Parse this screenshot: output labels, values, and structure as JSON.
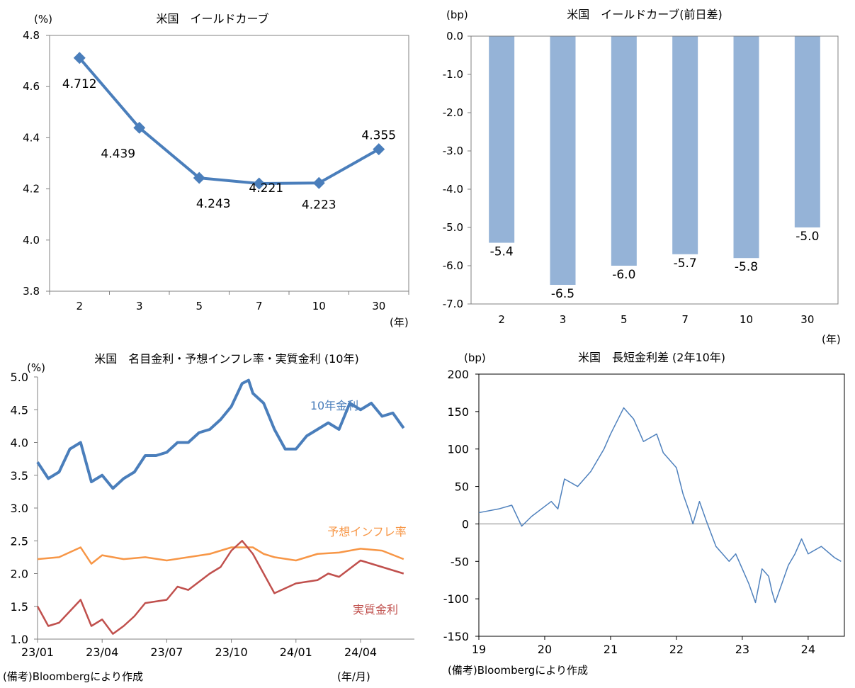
{
  "footnotes": {
    "left": "(備考)Bloombergにより作成",
    "right": "(備考)Bloombergにより作成",
    "left_xunit": "(年/月)"
  },
  "colors": {
    "line_blue": "#4a7ebb",
    "bar_blue": "#95b3d7",
    "orange": "#f79646",
    "red": "#c0504d",
    "spread_blue": "#4f81bd"
  },
  "chart_data": [
    {
      "id": "yield_curve",
      "type": "line",
      "title": "米国　イールドカーブ",
      "yunit": "(%)",
      "xunit": "(年)",
      "categories": [
        "2",
        "3",
        "5",
        "7",
        "10",
        "30"
      ],
      "values": [
        4.712,
        4.439,
        4.243,
        4.221,
        4.223,
        4.355
      ],
      "data_labels": [
        "4.712",
        "4.439",
        "4.243",
        "4.221",
        "4.223",
        "4.355"
      ],
      "ylim": [
        3.8,
        4.8
      ],
      "yticks": [
        "3.8",
        "4.0",
        "4.2",
        "4.4",
        "4.6",
        "4.8"
      ]
    },
    {
      "id": "yield_change",
      "type": "bar",
      "title": "米国　イールドカーブ(前日差)",
      "yunit": "(bp)",
      "xunit": "(年)",
      "categories": [
        "2",
        "3",
        "5",
        "7",
        "10",
        "30"
      ],
      "values": [
        -5.4,
        -6.5,
        -6.0,
        -5.7,
        -5.8,
        -5.0
      ],
      "data_labels": [
        "-5.4",
        "-6.5",
        "-6.0",
        "-5.7",
        "-5.8",
        "-5.0"
      ],
      "ylim": [
        -7.0,
        0.0
      ],
      "yticks": [
        "0.0",
        "-1.0",
        "-2.0",
        "-3.0",
        "-4.0",
        "-5.0",
        "-6.0",
        "-7.0"
      ]
    },
    {
      "id": "rates_10y",
      "type": "line",
      "title": "米国　名目金利・予想インフレ率・実質金利 (10年)",
      "yunit": "(%)",
      "ylim": [
        1.0,
        5.0
      ],
      "yticks": [
        "1.0",
        "1.5",
        "2.0",
        "2.5",
        "3.0",
        "3.5",
        "4.0",
        "4.5",
        "5.0"
      ],
      "xticks": [
        "23/01",
        "23/04",
        "23/07",
        "23/10",
        "24/01",
        "24/04"
      ],
      "series": [
        {
          "name": "10年金利",
          "points": [
            [
              0,
              3.7
            ],
            [
              0.5,
              3.45
            ],
            [
              1,
              3.55
            ],
            [
              1.5,
              3.9
            ],
            [
              2,
              4.0
            ],
            [
              2.5,
              3.4
            ],
            [
              3,
              3.5
            ],
            [
              3.5,
              3.3
            ],
            [
              4,
              3.45
            ],
            [
              4.5,
              3.55
            ],
            [
              5,
              3.8
            ],
            [
              5.5,
              3.8
            ],
            [
              6,
              3.85
            ],
            [
              6.5,
              4.0
            ],
            [
              7,
              4.0
            ],
            [
              7.5,
              4.15
            ],
            [
              8,
              4.2
            ],
            [
              8.5,
              4.35
            ],
            [
              9,
              4.55
            ],
            [
              9.5,
              4.9
            ],
            [
              9.8,
              4.95
            ],
            [
              10,
              4.75
            ],
            [
              10.5,
              4.6
            ],
            [
              11,
              4.2
            ],
            [
              11.5,
              3.9
            ],
            [
              12,
              3.9
            ],
            [
              12.5,
              4.1
            ],
            [
              13,
              4.2
            ],
            [
              13.5,
              4.3
            ],
            [
              14,
              4.2
            ],
            [
              14.5,
              4.6
            ],
            [
              15,
              4.5
            ],
            [
              15.5,
              4.6
            ],
            [
              16,
              4.4
            ],
            [
              16.5,
              4.45
            ],
            [
              17,
              4.22
            ]
          ]
        },
        {
          "name": "予想インフレ率",
          "points": [
            [
              0,
              2.22
            ],
            [
              1,
              2.25
            ],
            [
              2,
              2.4
            ],
            [
              2.5,
              2.15
            ],
            [
              3,
              2.28
            ],
            [
              4,
              2.22
            ],
            [
              5,
              2.25
            ],
            [
              6,
              2.2
            ],
            [
              7,
              2.25
            ],
            [
              8,
              2.3
            ],
            [
              9,
              2.4
            ],
            [
              10,
              2.4
            ],
            [
              10.5,
              2.3
            ],
            [
              11,
              2.25
            ],
            [
              12,
              2.2
            ],
            [
              13,
              2.3
            ],
            [
              14,
              2.32
            ],
            [
              15,
              2.38
            ],
            [
              16,
              2.35
            ],
            [
              17,
              2.22
            ]
          ]
        },
        {
          "name": "実質金利",
          "points": [
            [
              0,
              1.5
            ],
            [
              0.5,
              1.2
            ],
            [
              1,
              1.25
            ],
            [
              2,
              1.6
            ],
            [
              2.5,
              1.2
            ],
            [
              3,
              1.3
            ],
            [
              3.5,
              1.08
            ],
            [
              4,
              1.2
            ],
            [
              4.5,
              1.35
            ],
            [
              5,
              1.55
            ],
            [
              6,
              1.6
            ],
            [
              6.5,
              1.8
            ],
            [
              7,
              1.75
            ],
            [
              8,
              2.0
            ],
            [
              8.5,
              2.1
            ],
            [
              9,
              2.35
            ],
            [
              9.5,
              2.5
            ],
            [
              10,
              2.3
            ],
            [
              10.5,
              2.0
            ],
            [
              11,
              1.7
            ],
            [
              12,
              1.85
            ],
            [
              13,
              1.9
            ],
            [
              13.5,
              2.0
            ],
            [
              14,
              1.95
            ],
            [
              15,
              2.2
            ],
            [
              16,
              2.1
            ],
            [
              17,
              2.0
            ]
          ]
        }
      ]
    },
    {
      "id": "spread_2_10",
      "type": "line",
      "title": "米国　長短金利差 (2年10年)",
      "yunit": "(bp)",
      "ylim": [
        -150,
        200
      ],
      "yticks": [
        "200",
        "150",
        "100",
        "50",
        "0",
        "-50",
        "-100",
        "-150"
      ],
      "xticks": [
        "19",
        "20",
        "21",
        "22",
        "23",
        "24"
      ],
      "series": [
        {
          "name": "長短金利差",
          "points": [
            [
              19.0,
              15
            ],
            [
              19.3,
              20
            ],
            [
              19.5,
              25
            ],
            [
              19.65,
              -3
            ],
            [
              19.8,
              10
            ],
            [
              20.1,
              30
            ],
            [
              20.2,
              20
            ],
            [
              20.3,
              60
            ],
            [
              20.5,
              50
            ],
            [
              20.7,
              70
            ],
            [
              20.9,
              100
            ],
            [
              21.0,
              120
            ],
            [
              21.2,
              155
            ],
            [
              21.35,
              140
            ],
            [
              21.5,
              110
            ],
            [
              21.7,
              120
            ],
            [
              21.8,
              95
            ],
            [
              22.0,
              75
            ],
            [
              22.1,
              40
            ],
            [
              22.2,
              15
            ],
            [
              22.25,
              0
            ],
            [
              22.35,
              30
            ],
            [
              22.45,
              5
            ],
            [
              22.6,
              -30
            ],
            [
              22.8,
              -50
            ],
            [
              22.9,
              -40
            ],
            [
              23.0,
              -60
            ],
            [
              23.1,
              -80
            ],
            [
              23.2,
              -105
            ],
            [
              23.3,
              -60
            ],
            [
              23.4,
              -70
            ],
            [
              23.45,
              -90
            ],
            [
              23.5,
              -105
            ],
            [
              23.7,
              -55
            ],
            [
              23.8,
              -40
            ],
            [
              23.9,
              -20
            ],
            [
              24.0,
              -40
            ],
            [
              24.2,
              -30
            ],
            [
              24.4,
              -45
            ],
            [
              24.5,
              -50
            ]
          ]
        }
      ]
    }
  ]
}
